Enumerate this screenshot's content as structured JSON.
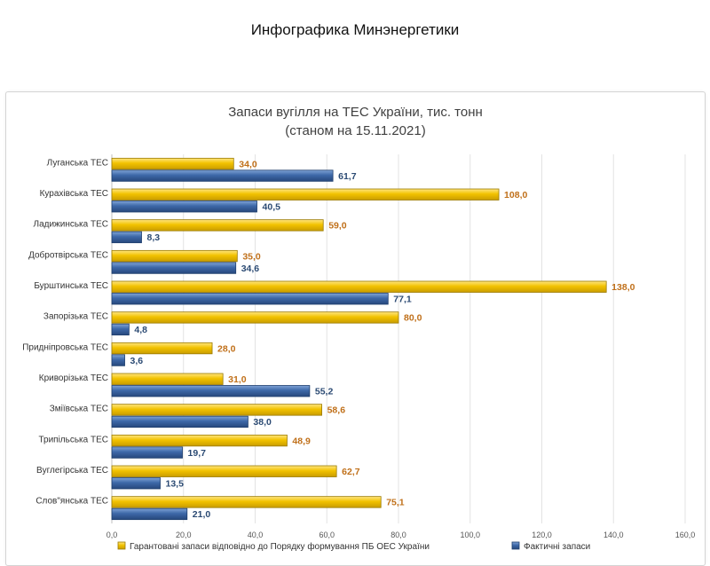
{
  "page": {
    "heading": "Инфографика Минэнергетики"
  },
  "colors": {
    "gold": "#F2C200",
    "gold_dark": "#9B7A00",
    "gold_label": "#C0701A",
    "blue": "#3D68A8",
    "blue_dark": "#1F3F6E",
    "blue_label": "#2B4A73",
    "grid": "#E3E3E3",
    "axis_text": "#555555"
  },
  "chart_data": {
    "type": "bar",
    "orientation": "horizontal",
    "title": "Запаси вугілля на ТЕС України, тис. тонн",
    "subtitle": "(станом на 15.11.2021)",
    "categories": [
      "Луганська ТЕС",
      "Курахівська ТЕС",
      "Ладижинська ТЕС",
      "Добротвірська ТЕС",
      "Бурштинська ТЕС",
      "Запорізька ТЕС",
      "Придніпровська ТЕС",
      "Криворізька ТЕС",
      "Зміївська ТЕС",
      "Трипільська ТЕС",
      "Вуглегірська ТЕС",
      "Слов\"янська ТЕС"
    ],
    "series": [
      {
        "name": "Гарантовані запаси відповідно до Порядку формування ПБ ОЕС України",
        "values": [
          34.0,
          108.0,
          59.0,
          35.0,
          138.0,
          80.0,
          28.0,
          31.0,
          58.6,
          48.9,
          62.7,
          75.1
        ],
        "labels": [
          "34,0",
          "108,0",
          "59,0",
          "35,0",
          "138,0",
          "80,0",
          "28,0",
          "31,0",
          "58,6",
          "48,9",
          "62,7",
          "75,1"
        ]
      },
      {
        "name": "Фактичні запаси",
        "values": [
          61.7,
          40.5,
          8.3,
          34.6,
          77.1,
          4.8,
          3.6,
          55.2,
          38.0,
          19.7,
          13.5,
          21.0
        ],
        "labels": [
          "61,7",
          "40,5",
          "8,3",
          "34,6",
          "77,1",
          "4,8",
          "3,6",
          "55,2",
          "38,0",
          "19,7",
          "13,5",
          "21,0"
        ]
      }
    ],
    "xlim": [
      0,
      160
    ],
    "xticks": [
      "0,0",
      "20,0",
      "40,0",
      "60,0",
      "80,0",
      "100,0",
      "120,0",
      "140,0",
      "160,0"
    ],
    "grid": true,
    "legend_position": "bottom"
  }
}
